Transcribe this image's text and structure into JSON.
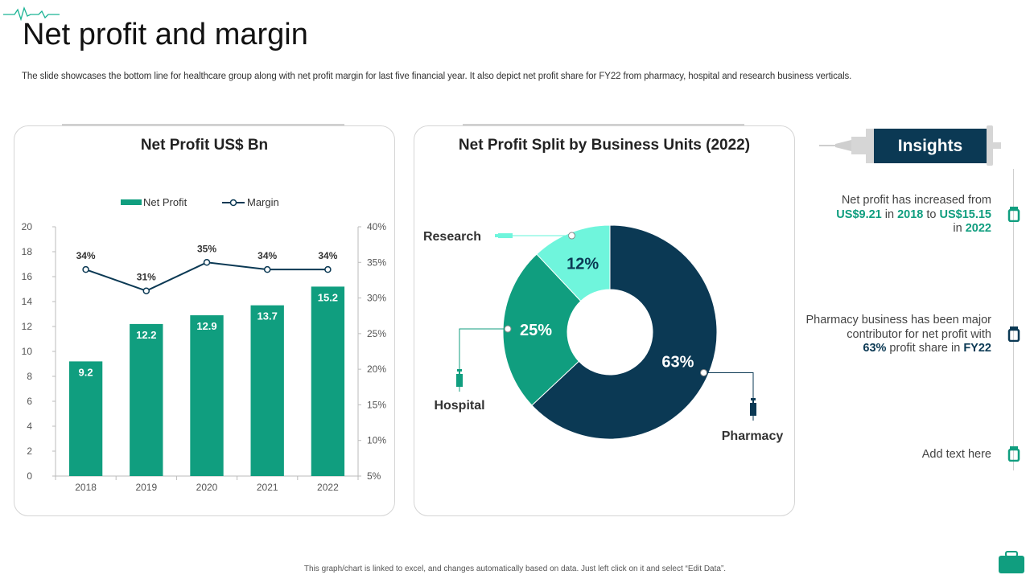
{
  "page": {
    "title": "Net profit and margin",
    "subtitle": "The slide showcases the bottom line for healthcare group along with net profit margin for last five financial year. It also depict net profit share for FY22 from pharmacy, hospital and research business verticals.",
    "footer": "This graph/chart is linked to excel, and changes automatically based on data. Just left click on it and select “Edit Data”."
  },
  "colors": {
    "teal": "#109e7f",
    "navy": "#0b3954",
    "mint": "#6ff5dc",
    "grey": "#d0d0d0"
  },
  "chart_data": [
    {
      "type": "bar",
      "title": "Net Profit US$ Bn",
      "categories": [
        "2018",
        "2019",
        "2020",
        "2021",
        "2022"
      ],
      "series": [
        {
          "name": "Net Profit",
          "type": "bar",
          "axis": "left",
          "values": [
            9.2,
            12.2,
            12.9,
            13.7,
            15.2
          ],
          "labels": [
            "9.2",
            "12.2",
            "12.9",
            "13.7",
            "15.2"
          ]
        },
        {
          "name": "Margin",
          "type": "line",
          "axis": "right",
          "values": [
            34,
            31,
            35,
            34,
            34
          ],
          "labels": [
            "34%",
            "31%",
            "35%",
            "34%",
            "34%"
          ]
        }
      ],
      "ylim": [
        0,
        20
      ],
      "yticks": [
        "0",
        "2",
        "4",
        "6",
        "8",
        "10",
        "12",
        "14",
        "16",
        "18",
        "20"
      ],
      "y2lim": [
        5,
        40
      ],
      "y2ticks": [
        "5%",
        "10%",
        "15%",
        "20%",
        "25%",
        "30%",
        "35%",
        "40%"
      ],
      "legend": "top-center",
      "grid": false
    },
    {
      "type": "pie",
      "variant": "donut",
      "title": "Net Profit Split by Business Units (2022)",
      "slices": [
        {
          "name": "Pharmacy",
          "value": 63,
          "label": "63%"
        },
        {
          "name": "Hospital",
          "value": 25,
          "label": "25%"
        },
        {
          "name": "Research",
          "value": 12,
          "label": "12%"
        }
      ]
    }
  ],
  "insights": {
    "title": "Insights",
    "items": [
      {
        "parts": [
          "Net profit has increased from",
          "US$9.21",
          " in ",
          "2018",
          " to ",
          "US$15.15",
          "in ",
          "2022"
        ]
      },
      {
        "parts": [
          "Pharmacy business has been major contributor for net profit with",
          "63%",
          " profit share in ",
          "FY22"
        ]
      },
      {
        "parts": [
          "Add text here"
        ]
      }
    ]
  }
}
